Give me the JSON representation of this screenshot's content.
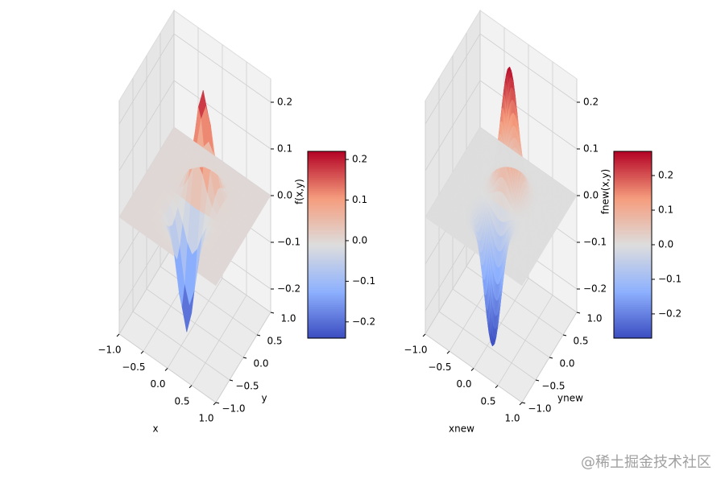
{
  "chart_data": [
    {
      "type": "surface3d",
      "xlabel": "x",
      "ylabel": "y",
      "zlabel": "f(x,y)",
      "xlim": [
        -1.0,
        1.0
      ],
      "ylim": [
        -1.0,
        1.0
      ],
      "zlim": [
        -0.25,
        0.25
      ],
      "xticks": [
        -1.0,
        -0.5,
        0.0,
        0.5,
        1.0
      ],
      "yticks": [
        -1.0,
        -0.5,
        0.0,
        0.5,
        1.0
      ],
      "zticks": [
        -0.2,
        -0.1,
        0.0,
        0.1,
        0.2
      ],
      "xtick_labels": [
        "−1.0",
        "−0.5",
        "0.0",
        "0.5",
        "1.0"
      ],
      "ytick_labels": [
        "−1.0",
        "−0.5",
        "0.0",
        "0.5",
        "1.0"
      ],
      "ztick_labels": [
        "−0.2",
        "−0.1",
        "0.0",
        "0.1",
        "0.2"
      ],
      "grid_points": 20,
      "colormap": "coolwarm",
      "colorbar": {
        "range": [
          -0.24,
          0.22
        ],
        "ticks": [
          -0.2,
          -0.1,
          0.0,
          0.1,
          0.2
        ],
        "tick_labels": [
          "−0.2",
          "−0.1",
          "0.0",
          "0.1",
          "0.2"
        ]
      },
      "peak": {
        "x": 0.0,
        "y": 0.3,
        "z": 0.22
      },
      "trough": {
        "x": 0.0,
        "y": -0.3,
        "z": -0.24
      }
    },
    {
      "type": "surface3d",
      "xlabel": "xnew",
      "ylabel": "ynew",
      "zlabel": "fnew(x,y)",
      "xlim": [
        -1.0,
        1.0
      ],
      "ylim": [
        -1.0,
        1.0
      ],
      "zlim": [
        -0.25,
        0.25
      ],
      "xticks": [
        -1.0,
        -0.5,
        0.0,
        0.5,
        1.0
      ],
      "yticks": [
        -1.0,
        -0.5,
        0.0,
        0.5,
        1.0
      ],
      "zticks": [
        -0.2,
        -0.1,
        0.0,
        0.1,
        0.2
      ],
      "xtick_labels": [
        "−1.0",
        "−0.5",
        "0.0",
        "0.5",
        "1.0"
      ],
      "ytick_labels": [
        "−1.0",
        "−0.5",
        "0.0",
        "0.5",
        "1.0"
      ],
      "ztick_labels": [
        "−0.2",
        "−0.1",
        "0.0",
        "0.1",
        "0.2"
      ],
      "grid_points": 70,
      "colormap": "coolwarm",
      "colorbar": {
        "range": [
          -0.27,
          0.27
        ],
        "ticks": [
          -0.2,
          -0.1,
          0.0,
          0.1,
          0.2
        ],
        "tick_labels": [
          "−0.2",
          "−0.1",
          "0.0",
          "0.1",
          "0.2"
        ]
      },
      "peak": {
        "x": 0.0,
        "y": 0.3,
        "z": 0.27
      },
      "trough": {
        "x": 0.0,
        "y": -0.3,
        "z": -0.27
      }
    }
  ],
  "watermark": "@稀土掘金技术社区",
  "colors": {
    "pane": "#f2f2f2",
    "pane_side": "#e6e6e6",
    "grid": "#cfcfcf",
    "text": "#000000"
  }
}
